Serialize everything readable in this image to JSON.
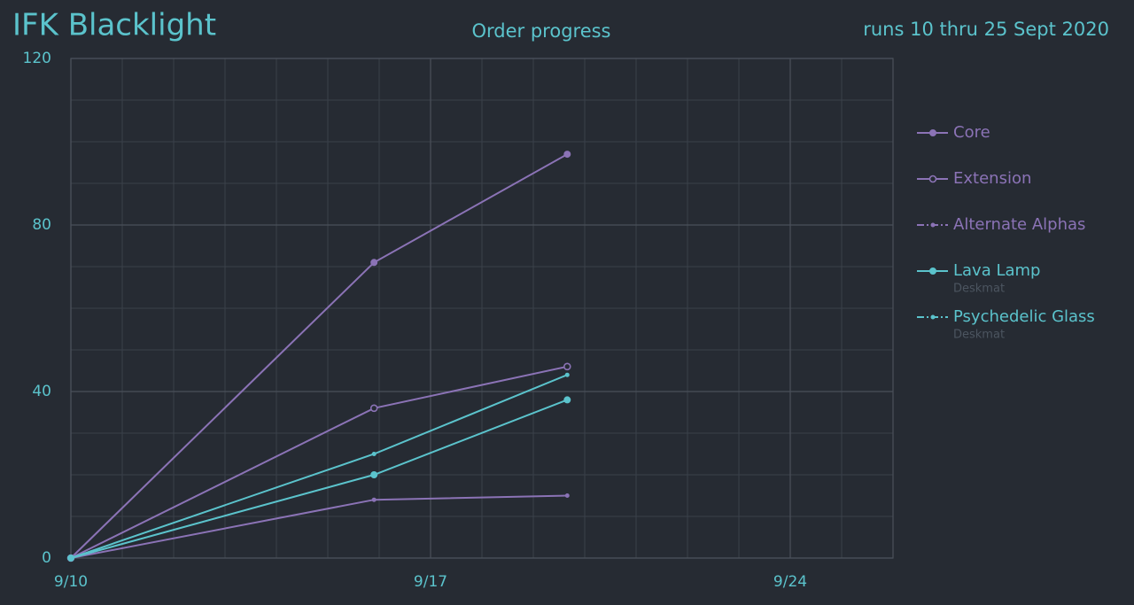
{
  "chart_data": {
    "type": "line",
    "title": "IFK Blacklight",
    "subtitle": "Order progress",
    "note": "runs 10 thru 25 Sept 2020",
    "x": [
      10,
      15.9,
      19.66
    ],
    "xlim": [
      10,
      26
    ],
    "xticks": [
      {
        "value": 10,
        "label": "9/10"
      },
      {
        "value": 17,
        "label": "9/17"
      },
      {
        "value": 24,
        "label": "9/24"
      }
    ],
    "xgrid_step": 1,
    "ylim": [
      0,
      120
    ],
    "yticks": [
      0,
      40,
      80,
      120
    ],
    "ygrid_step": 10,
    "grid": true,
    "legend": "right",
    "series": [
      {
        "name": "Core",
        "color": "#8b73b6",
        "marker": "filled",
        "values": [
          0,
          71,
          97
        ]
      },
      {
        "name": "Extension",
        "color": "#8b73b6",
        "marker": "hollow",
        "values": [
          0,
          36,
          46
        ]
      },
      {
        "name": "Alternate Alphas",
        "color": "#8b73b6",
        "marker": "small",
        "values": [
          0,
          14,
          15
        ]
      },
      {
        "name": "Lava Lamp",
        "subtitle": "Deskmat",
        "color": "#5bc3cc",
        "marker": "filled",
        "values": [
          0,
          20,
          38
        ]
      },
      {
        "name": "Psychedelic Glass",
        "subtitle": "Deskmat",
        "color": "#5bc3cc",
        "marker": "small",
        "values": [
          0,
          25,
          44
        ]
      }
    ]
  }
}
